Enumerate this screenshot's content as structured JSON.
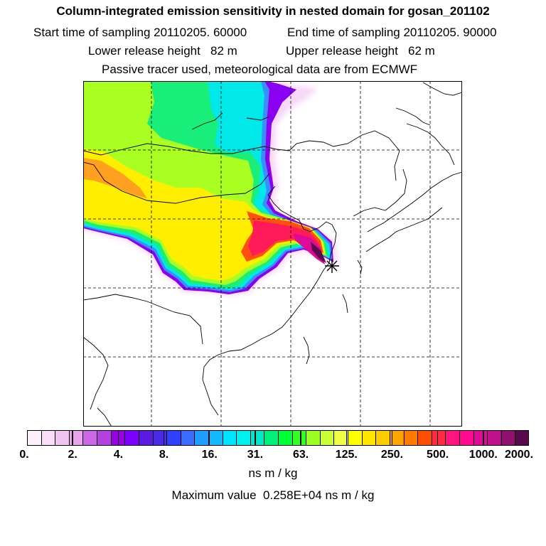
{
  "header": {
    "title": "Column-integrated emission sensitivity in nested domain for gosan_201102",
    "start_time": "Start time of sampling 20110205. 60000",
    "end_time": "End time of sampling 20110205. 90000",
    "lower_release": "Lower release height   82 m",
    "upper_release": "Upper release height   62 m",
    "tracer_info": "Passive tracer used, meteorological data are from ECMWF"
  },
  "colorbar": {
    "labels": [
      "0.",
      "2.",
      "4.",
      "8.",
      "16.",
      "31.",
      "63.",
      "125.",
      "250.",
      "500.",
      "1000.",
      "2000."
    ],
    "colors": [
      "#fdf0fd",
      "#f9ddf9",
      "#f2c2f2",
      "#eaa3ee",
      "#cc66e6",
      "#b340e0",
      "#9900e6",
      "#8000ff",
      "#5a1ae0",
      "#4a2ae6",
      "#3040ff",
      "#3a6cff",
      "#1f9dff",
      "#14b8ff",
      "#00e4ff",
      "#00f0f0",
      "#00e8cc",
      "#00f07a",
      "#00ff33",
      "#33ff22",
      "#99ff22",
      "#ccff33",
      "#f0ff44",
      "#ffff00",
      "#ffe600",
      "#ffcc00",
      "#ffa500",
      "#ff7a00",
      "#ff4d00",
      "#ff2a40",
      "#ff1480",
      "#ff0a90",
      "#e00a98",
      "#c0108a",
      "#901070",
      "#5a0a4a"
    ],
    "units": "ns m / kg"
  },
  "max_value_text": "Maximum value  0.258E+04 ns m / kg"
}
